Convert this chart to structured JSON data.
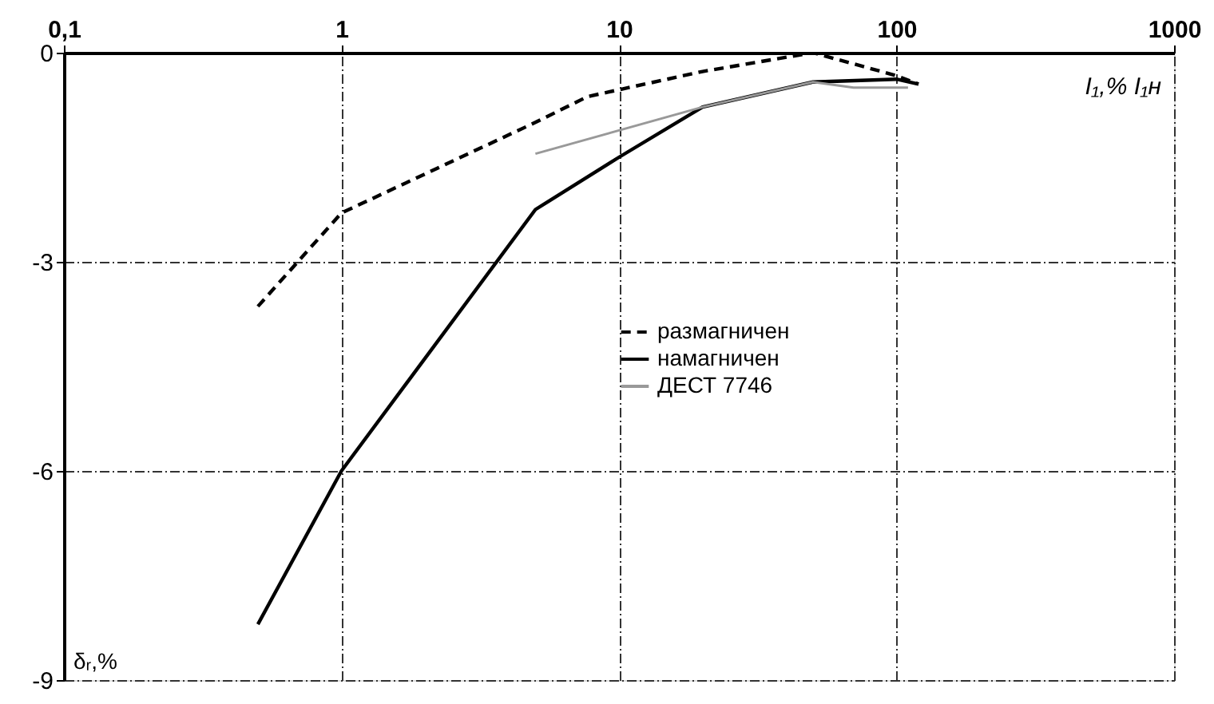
{
  "chart_data": {
    "type": "line",
    "xlabel": "I₁,% I₁н",
    "ylabel": "δᵣ,%",
    "log": "x",
    "xlim": [
      0.1,
      1000
    ],
    "ylim": [
      -9,
      0
    ],
    "xticks": [
      {
        "value": 0.1,
        "label": "0,1"
      },
      1,
      10,
      100,
      1000
    ],
    "yticks": [
      -9,
      -6,
      -3,
      0
    ],
    "grid": true,
    "legend": "center",
    "marker": "none",
    "series": [
      {
        "name": "размагничен",
        "color": "#000000",
        "line_style": "dashed",
        "x": [
          0.5,
          1,
          5,
          7.7,
          20,
          50,
          100,
          120
        ],
        "values": [
          -3.64,
          -2.3,
          -1.0,
          -0.63,
          -0.27,
          0,
          -0.33,
          -0.45
        ]
      },
      {
        "name": "намагничен",
        "color": "#000000",
        "line_style": "solid",
        "x": [
          0.5,
          1,
          5,
          10,
          20,
          50,
          100,
          120
        ],
        "values": [
          -8.2,
          -6.0,
          -2.25,
          -1.5,
          -0.78,
          -0.42,
          -0.38,
          -0.45
        ]
      },
      {
        "name": "ДЕСТ 7746",
        "color": "#999999",
        "line_style": "solid",
        "x": [
          5,
          20,
          50,
          70,
          110
        ],
        "values": [
          -1.45,
          -0.78,
          -0.42,
          -0.5,
          -0.5
        ]
      }
    ]
  }
}
